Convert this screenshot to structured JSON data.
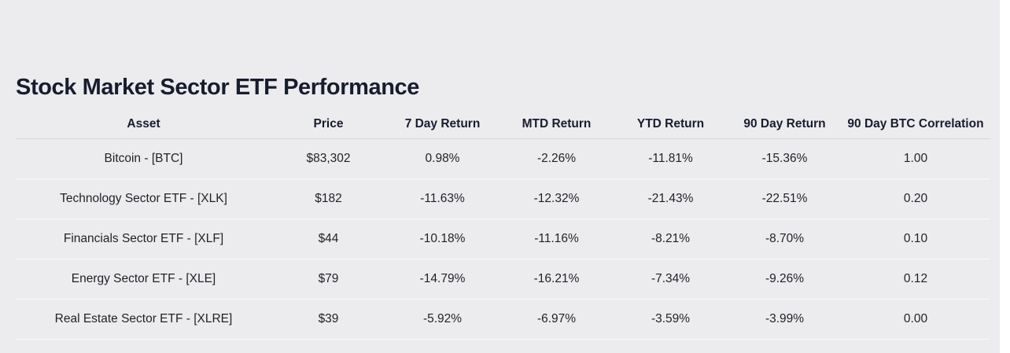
{
  "page": {
    "title": "Stock Market Sector ETF Performance"
  },
  "colors": {
    "positive": "#169416",
    "negative": "#e12d2d",
    "background": "#ececee",
    "ink": "#181c2f"
  },
  "chart_data": {
    "type": "table",
    "title": "Stock Market Sector ETF Performance",
    "columns": [
      "Asset",
      "Price",
      "7 Day Return",
      "MTD Return",
      "YTD Return",
      "90 Day Return",
      "90 Day BTC Correlation"
    ],
    "rows": [
      {
        "asset": "Bitcoin - [BTC]",
        "price": "$83,302",
        "d7": "0.98%",
        "mtd": "-2.26%",
        "ytd": "-11.81%",
        "d90": "-15.36%",
        "corr": "1.00"
      },
      {
        "asset": "Technology Sector ETF - [XLK]",
        "price": "$182",
        "d7": "-11.63%",
        "mtd": "-12.32%",
        "ytd": "-21.43%",
        "d90": "-22.51%",
        "corr": "0.20"
      },
      {
        "asset": "Financials Sector ETF - [XLF]",
        "price": "$44",
        "d7": "-10.18%",
        "mtd": "-11.16%",
        "ytd": "-8.21%",
        "d90": "-8.70%",
        "corr": "0.10"
      },
      {
        "asset": "Energy Sector ETF - [XLE]",
        "price": "$79",
        "d7": "-14.79%",
        "mtd": "-16.21%",
        "ytd": "-7.34%",
        "d90": "-9.26%",
        "corr": "0.12"
      },
      {
        "asset": "Real Estate Sector ETF - [XLRE]",
        "price": "$39",
        "d7": "-5.92%",
        "mtd": "-6.97%",
        "ytd": "-3.59%",
        "d90": "-3.99%",
        "corr": "0.00"
      }
    ]
  }
}
